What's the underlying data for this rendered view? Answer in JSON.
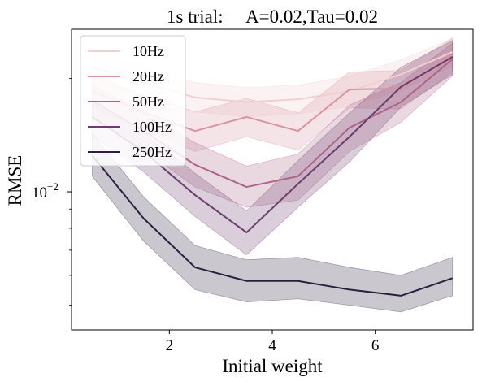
{
  "chart_data": {
    "type": "line",
    "title": "1s trial:     A=0.02,Tau=0.02",
    "xlabel": "Initial weight",
    "ylabel": "RMSE",
    "yscale": "log",
    "xlim": [
      0.1,
      7.9
    ],
    "ylim": [
      0.0043,
      0.027
    ],
    "x_ticks": [
      {
        "value": 2,
        "label": "2"
      },
      {
        "value": 4,
        "label": "4"
      },
      {
        "value": 6,
        "label": "6"
      }
    ],
    "y_major_ticks": [
      {
        "value": 0.01,
        "label": "10",
        "exponent": "−2"
      }
    ],
    "y_minor_ticks": [
      0.005,
      0.006,
      0.007,
      0.008,
      0.009,
      0.02
    ],
    "grid": false,
    "legend_position": "top-left",
    "x": [
      0.5,
      1.5,
      2.5,
      3.5,
      4.5,
      5.5,
      6.5,
      7.5
    ],
    "series": [
      {
        "name": "10Hz",
        "color": "#efcfcf",
        "values": [
          0.0215,
          0.0195,
          0.0178,
          0.0173,
          0.0176,
          0.0185,
          0.0205,
          0.0235
        ],
        "lower": [
          0.0193,
          0.0178,
          0.0163,
          0.0158,
          0.0161,
          0.0169,
          0.0186,
          0.0215
        ],
        "upper": [
          0.0238,
          0.0213,
          0.0195,
          0.0189,
          0.0192,
          0.0203,
          0.0224,
          0.0255
        ]
      },
      {
        "name": "20Hz",
        "color": "#d9929f",
        "values": [
          0.0185,
          0.0163,
          0.0145,
          0.0158,
          0.0145,
          0.0187,
          0.0188,
          0.0232
        ],
        "lower": [
          0.0167,
          0.0146,
          0.0128,
          0.014,
          0.0129,
          0.0167,
          0.0166,
          0.0208
        ],
        "upper": [
          0.0204,
          0.0181,
          0.0163,
          0.0177,
          0.0162,
          0.0208,
          0.021,
          0.0256
        ]
      },
      {
        "name": "50Hz",
        "color": "#ad6488",
        "values": [
          0.0175,
          0.0145,
          0.0118,
          0.0103,
          0.011,
          0.0148,
          0.0173,
          0.0225
        ],
        "lower": [
          0.0157,
          0.0129,
          0.0103,
          0.0091,
          0.0095,
          0.0128,
          0.0153,
          0.0203
        ],
        "upper": [
          0.0193,
          0.0162,
          0.0135,
          0.0117,
          0.0126,
          0.017,
          0.0195,
          0.0248
        ]
      },
      {
        "name": "100Hz",
        "color": "#6b3d6e",
        "values": [
          0.0158,
          0.0128,
          0.0098,
          0.0078,
          0.0105,
          0.014,
          0.019,
          0.0228
        ],
        "lower": [
          0.0141,
          0.0113,
          0.0086,
          0.0068,
          0.0091,
          0.012,
          0.0168,
          0.0205
        ],
        "upper": [
          0.0176,
          0.0144,
          0.0112,
          0.0089,
          0.0121,
          0.0162,
          0.0214,
          0.0252
        ]
      },
      {
        "name": "250Hz",
        "color": "#2c1f3e",
        "values": [
          0.0125,
          0.0085,
          0.0063,
          0.0058,
          0.0058,
          0.0055,
          0.0053,
          0.0059
        ],
        "lower": [
          0.011,
          0.0074,
          0.0055,
          0.0051,
          0.0052,
          0.005,
          0.0048,
          0.0053
        ],
        "upper": [
          0.0143,
          0.0097,
          0.0072,
          0.0066,
          0.0067,
          0.0063,
          0.006,
          0.0067
        ]
      }
    ]
  }
}
